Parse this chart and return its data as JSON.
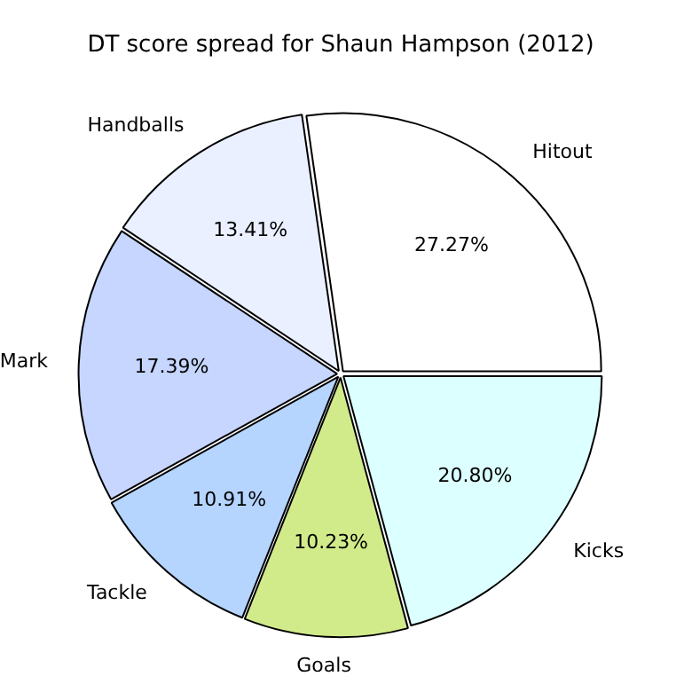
{
  "chart_data": {
    "type": "pie",
    "title": "DT score spread for Shaun Hampson (2012)",
    "categories": [
      "Kicks",
      "Goals",
      "Tackle",
      "Mark",
      "Handballs",
      "Hitout"
    ],
    "values": [
      20.8,
      10.23,
      10.91,
      17.39,
      13.41,
      27.27
    ],
    "colors": [
      "#dcffff",
      "#d2eb8a",
      "#b5d5ff",
      "#c6d6ff",
      "#eaf0ff",
      "#ffffff"
    ],
    "value_labels": [
      "20.80%",
      "10.23%",
      "10.91%",
      "17.39%",
      "13.41%",
      "27.27%"
    ],
    "legend": false
  }
}
